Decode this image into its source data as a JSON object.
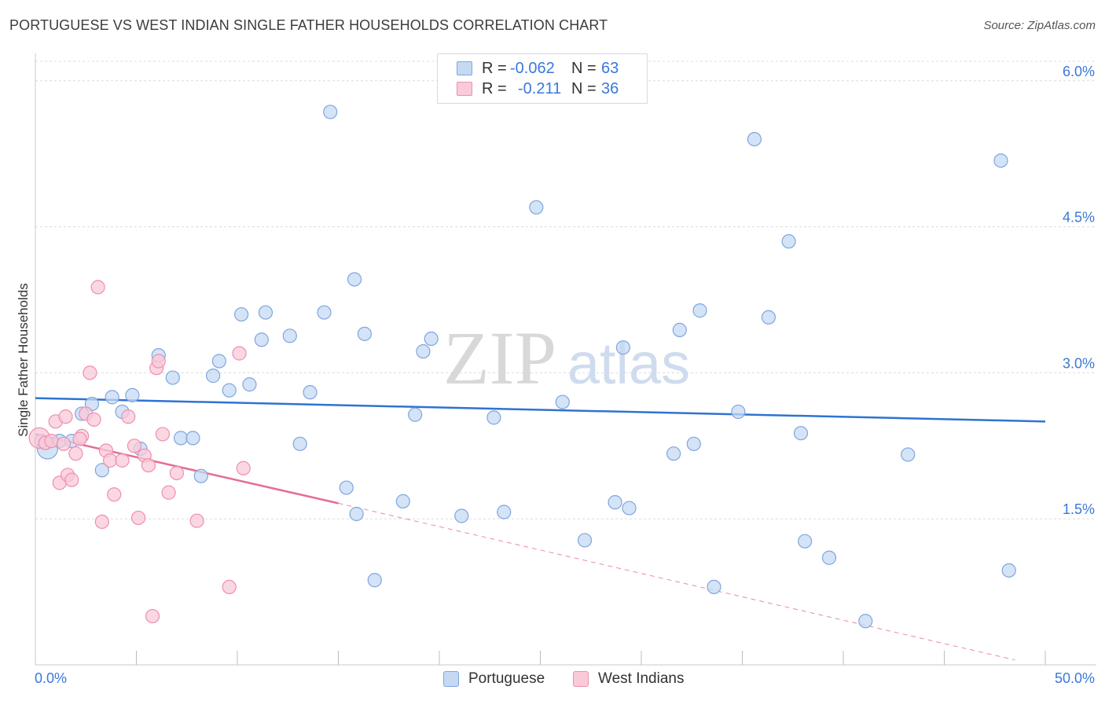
{
  "title": "PORTUGUESE VS WEST INDIAN SINGLE FATHER HOUSEHOLDS CORRELATION CHART",
  "source": "Source: ZipAtlas.com",
  "watermark": {
    "zip": "ZIP",
    "atlas": "atlas"
  },
  "legend": {
    "rows": [
      {
        "r_label": "R =",
        "r_value": "-0.062",
        "n_label": "N =",
        "n_value": "63"
      },
      {
        "r_label": "R =",
        "r_value": "-0.211",
        "n_label": "N =",
        "n_value": "36"
      }
    ]
  },
  "bottom_legend": {
    "portuguese": "Portuguese",
    "west_indians": "West Indians"
  },
  "chart_data": {
    "type": "scatter",
    "ylabel": "Single Father Households",
    "xlabel": "",
    "xlim": [
      0,
      50
    ],
    "ylim": [
      0,
      6.2
    ],
    "x_tick_labels": {
      "min": "0.0%",
      "max": "50.0%"
    },
    "y_ticks": [
      {
        "value": 1.5,
        "label": "1.5%"
      },
      {
        "value": 3.0,
        "label": "3.0%"
      },
      {
        "value": 4.5,
        "label": "4.5%"
      },
      {
        "value": 6.0,
        "label": "6.0%"
      }
    ],
    "grid": true,
    "legend_position": "top-center",
    "colors": {
      "portuguese_fill": "#c5d9f3",
      "portuguese_stroke": "#7ea6e0",
      "portuguese_line": "#2f73d0",
      "west_indians_fill": "#f9cad8",
      "west_indians_stroke": "#ee8fae",
      "west_indians_line": "#e56c96",
      "axis_text": "#3a78d8"
    },
    "series": [
      {
        "name": "Portuguese",
        "points": [
          [
            0.3,
            2.3
          ],
          [
            0.6,
            2.22
          ],
          [
            1.2,
            2.3
          ],
          [
            1.8,
            2.3
          ],
          [
            2.3,
            2.58
          ],
          [
            3.3,
            2.0
          ],
          [
            2.8,
            2.68
          ],
          [
            3.8,
            2.75
          ],
          [
            4.3,
            2.6
          ],
          [
            4.8,
            2.77
          ],
          [
            5.2,
            2.22
          ],
          [
            6.1,
            3.18
          ],
          [
            6.8,
            2.95
          ],
          [
            7.2,
            2.33
          ],
          [
            7.8,
            2.33
          ],
          [
            8.2,
            1.94
          ],
          [
            8.8,
            2.97
          ],
          [
            9.1,
            3.12
          ],
          [
            9.6,
            2.82
          ],
          [
            10.6,
            2.88
          ],
          [
            10.2,
            3.6
          ],
          [
            11.4,
            3.62
          ],
          [
            11.2,
            3.34
          ],
          [
            12.6,
            3.38
          ],
          [
            13.1,
            2.27
          ],
          [
            13.6,
            2.8
          ],
          [
            14.3,
            3.62
          ],
          [
            14.6,
            5.68
          ],
          [
            15.4,
            1.82
          ],
          [
            15.8,
            3.96
          ],
          [
            15.9,
            1.55
          ],
          [
            16.3,
            3.4
          ],
          [
            16.8,
            0.87
          ],
          [
            18.2,
            1.68
          ],
          [
            18.8,
            2.57
          ],
          [
            19.2,
            3.22
          ],
          [
            19.6,
            3.35
          ],
          [
            21.1,
            1.53
          ],
          [
            22.7,
            2.54
          ],
          [
            23.2,
            1.57
          ],
          [
            24.8,
            4.7
          ],
          [
            26.1,
            2.7
          ],
          [
            27.2,
            1.28
          ],
          [
            28.7,
            1.67
          ],
          [
            29.1,
            3.26
          ],
          [
            29.4,
            1.61
          ],
          [
            31.6,
            2.17
          ],
          [
            31.9,
            3.44
          ],
          [
            32.6,
            2.27
          ],
          [
            32.9,
            3.64
          ],
          [
            33.6,
            0.8
          ],
          [
            34.8,
            2.6
          ],
          [
            35.6,
            5.4
          ],
          [
            36.3,
            3.57
          ],
          [
            37.3,
            4.35
          ],
          [
            37.9,
            2.38
          ],
          [
            38.1,
            1.27
          ],
          [
            39.3,
            1.1
          ],
          [
            41.1,
            0.45
          ],
          [
            43.2,
            2.16
          ],
          [
            47.8,
            5.18
          ],
          [
            48.2,
            0.97
          ],
          [
            0.5,
            2.28
          ]
        ],
        "trend": {
          "x": [
            0,
            50
          ],
          "y": [
            2.74,
            2.5
          ]
        }
      },
      {
        "name": "West Indians",
        "points": [
          [
            0.2,
            2.33
          ],
          [
            0.5,
            2.28
          ],
          [
            0.8,
            2.3
          ],
          [
            1.0,
            2.5
          ],
          [
            1.2,
            1.87
          ],
          [
            1.4,
            2.27
          ],
          [
            1.6,
            1.95
          ],
          [
            1.8,
            1.9
          ],
          [
            2.0,
            2.17
          ],
          [
            2.3,
            2.35
          ],
          [
            2.5,
            2.58
          ],
          [
            2.7,
            3.0
          ],
          [
            2.9,
            2.52
          ],
          [
            3.1,
            3.88
          ],
          [
            3.3,
            1.47
          ],
          [
            3.5,
            2.2
          ],
          [
            3.7,
            2.1
          ],
          [
            3.9,
            1.75
          ],
          [
            4.3,
            2.1
          ],
          [
            4.6,
            2.55
          ],
          [
            4.9,
            2.25
          ],
          [
            5.1,
            1.51
          ],
          [
            5.4,
            2.15
          ],
          [
            5.6,
            2.05
          ],
          [
            5.8,
            0.5
          ],
          [
            6.0,
            3.05
          ],
          [
            6.1,
            3.12
          ],
          [
            6.3,
            2.37
          ],
          [
            6.6,
            1.77
          ],
          [
            7.0,
            1.97
          ],
          [
            8.0,
            1.48
          ],
          [
            9.6,
            0.8
          ],
          [
            10.1,
            3.2
          ],
          [
            10.3,
            2.02
          ],
          [
            1.5,
            2.55
          ],
          [
            2.2,
            2.32
          ]
        ],
        "trend": {
          "x": [
            0,
            15
          ],
          "y": [
            2.37,
            1.66
          ]
        },
        "trend_dashed": {
          "x": [
            15,
            48.5
          ],
          "y": [
            1.66,
            0.05
          ]
        }
      }
    ]
  }
}
